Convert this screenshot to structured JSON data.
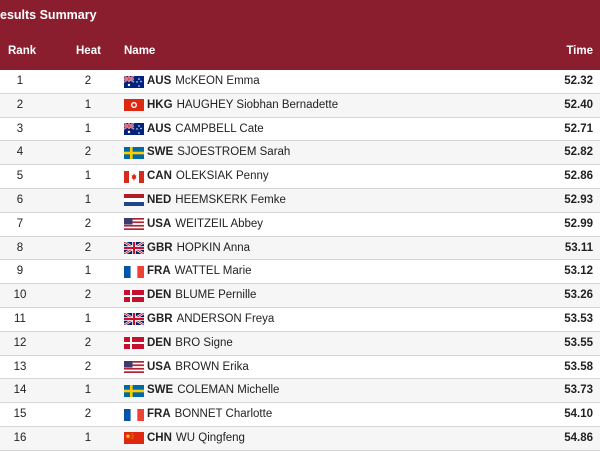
{
  "page": {
    "title": "esults Summary",
    "columns": {
      "rank": "Rank",
      "heat": "Heat",
      "name": "Name",
      "time": "Time"
    }
  },
  "rows": [
    {
      "rank": "1",
      "heat": "2",
      "noc": "AUS",
      "name": "McKEON Emma",
      "time": "52.32",
      "flag": "aus-flag-icon"
    },
    {
      "rank": "2",
      "heat": "1",
      "noc": "HKG",
      "name": "HAUGHEY Siobhan Bernadette",
      "time": "52.40",
      "flag": "hkg-flag-icon"
    },
    {
      "rank": "3",
      "heat": "1",
      "noc": "AUS",
      "name": "CAMPBELL Cate",
      "time": "52.71",
      "flag": "aus-flag-icon"
    },
    {
      "rank": "4",
      "heat": "2",
      "noc": "SWE",
      "name": "SJOESTROEM Sarah",
      "time": "52.82",
      "flag": "swe-flag-icon"
    },
    {
      "rank": "5",
      "heat": "1",
      "noc": "CAN",
      "name": "OLEKSIAK Penny",
      "time": "52.86",
      "flag": "can-flag-icon"
    },
    {
      "rank": "6",
      "heat": "1",
      "noc": "NED",
      "name": "HEEMSKERK Femke",
      "time": "52.93",
      "flag": "ned-flag-icon"
    },
    {
      "rank": "7",
      "heat": "2",
      "noc": "USA",
      "name": "WEITZEIL Abbey",
      "time": "52.99",
      "flag": "usa-flag-icon"
    },
    {
      "rank": "8",
      "heat": "2",
      "noc": "GBR",
      "name": "HOPKIN Anna",
      "time": "53.11",
      "flag": "gbr-flag-icon"
    },
    {
      "rank": "9",
      "heat": "1",
      "noc": "FRA",
      "name": "WATTEL Marie",
      "time": "53.12",
      "flag": "fra-flag-icon"
    },
    {
      "rank": "10",
      "heat": "2",
      "noc": "DEN",
      "name": "BLUME Pernille",
      "time": "53.26",
      "flag": "den-flag-icon"
    },
    {
      "rank": "11",
      "heat": "1",
      "noc": "GBR",
      "name": "ANDERSON Freya",
      "time": "53.53",
      "flag": "gbr-flag-icon"
    },
    {
      "rank": "12",
      "heat": "2",
      "noc": "DEN",
      "name": "BRO Signe",
      "time": "53.55",
      "flag": "den-flag-icon"
    },
    {
      "rank": "13",
      "heat": "2",
      "noc": "USA",
      "name": "BROWN Erika",
      "time": "53.58",
      "flag": "usa-flag-icon"
    },
    {
      "rank": "14",
      "heat": "1",
      "noc": "SWE",
      "name": "COLEMAN Michelle",
      "time": "53.73",
      "flag": "swe-flag-icon"
    },
    {
      "rank": "15",
      "heat": "2",
      "noc": "FRA",
      "name": "BONNET Charlotte",
      "time": "54.10",
      "flag": "fra-flag-icon"
    },
    {
      "rank": "16",
      "heat": "1",
      "noc": "CHN",
      "name": "WU Qingfeng",
      "time": "54.86",
      "flag": "chn-flag-icon"
    }
  ],
  "colors": {
    "header_bg": "#8a1e2f"
  }
}
